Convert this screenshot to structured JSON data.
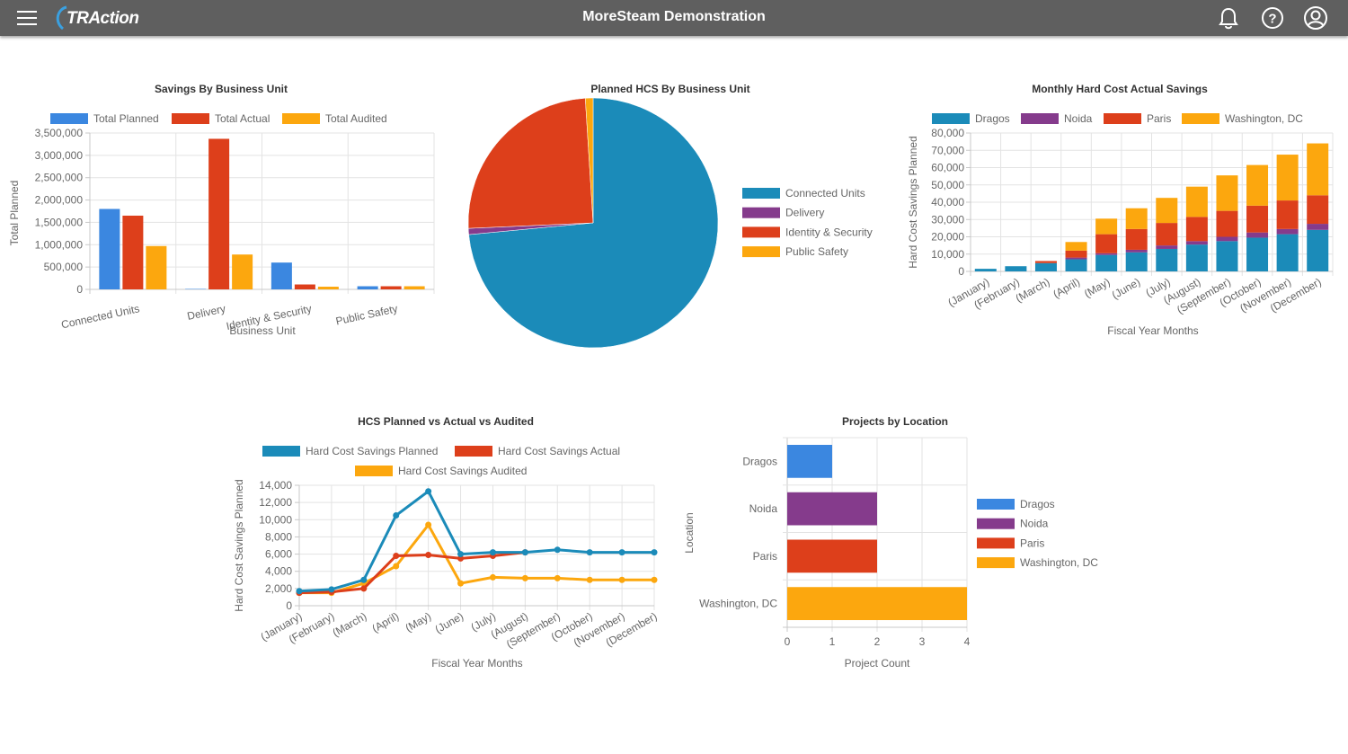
{
  "header": {
    "app_title": "MoreSteam Demonstration",
    "logo_text": "TRAction",
    "icons": [
      "menu-icon",
      "bell-icon",
      "help-icon",
      "user-icon"
    ]
  },
  "colors": {
    "blue": "#3b87e0",
    "red": "#dd3f1b",
    "orange": "#fca70e",
    "teal": "#1b8bb9",
    "purple": "#853b8c",
    "topbar": "#5f5f5f"
  },
  "chart_data": [
    {
      "id": "savings",
      "type": "bar",
      "title": "Savings By Business Unit",
      "xlabel": "Business Unit",
      "ylabel": "Total Planned",
      "categories": [
        "Connected Units",
        "Delivery",
        "Identity & Security",
        "Public Safety"
      ],
      "series": [
        {
          "name": "Total Planned",
          "color": "#3b87e0",
          "values": [
            1800000,
            10000,
            600000,
            70000
          ]
        },
        {
          "name": "Total Actual",
          "color": "#dd3f1b",
          "values": [
            1650000,
            3370000,
            110000,
            70000
          ]
        },
        {
          "name": "Total Audited",
          "color": "#fca70e",
          "values": [
            970000,
            780000,
            60000,
            70000
          ]
        }
      ],
      "ylim": [
        0,
        3500000
      ],
      "yticks": [
        "3,500,000",
        "3,000,000",
        "2,500,000",
        "2,000,000",
        "1,500,000",
        "1,000,000",
        "500,000",
        "0"
      ],
      "legend": "top"
    },
    {
      "id": "pie",
      "type": "pie",
      "title": "Planned HCS By Business Unit",
      "labels": [
        "Connected Units",
        "Delivery",
        "Identity & Security",
        "Public Safety"
      ],
      "values": [
        73.5,
        0.8,
        24.7,
        1.0
      ],
      "colors": [
        "#1b8bb9",
        "#853b8c",
        "#dd3f1b",
        "#fca70e"
      ],
      "legend": "right"
    },
    {
      "id": "monthly",
      "type": "bar",
      "stacked": true,
      "title": "Monthly Hard Cost Actual Savings",
      "xlabel": "Fiscal Year Months",
      "ylabel": "Hard Cost Savings Planned",
      "categories": [
        "(January)",
        "(February)",
        "(March)",
        "(April)",
        "(May)",
        "(June)",
        "(July)",
        "(August)",
        "(September)",
        "(October)",
        "(November)",
        "(December)"
      ],
      "series": [
        {
          "name": "Dragos",
          "color": "#1b8bb9",
          "values": [
            1500,
            3000,
            4800,
            7000,
            9500,
            11000,
            13000,
            15500,
            17500,
            19500,
            21500,
            24000
          ]
        },
        {
          "name": "Noida",
          "color": "#853b8c",
          "values": [
            0,
            0,
            0,
            1000,
            1000,
            1500,
            2000,
            2000,
            2500,
            3000,
            3000,
            3500
          ]
        },
        {
          "name": "Paris",
          "color": "#dd3f1b",
          "values": [
            0,
            0,
            1200,
            4000,
            11000,
            12000,
            13000,
            14000,
            15000,
            15500,
            16500,
            16500
          ]
        },
        {
          "name": "Washington, DC",
          "color": "#fca70e",
          "values": [
            0,
            0,
            0,
            5000,
            9000,
            12000,
            14500,
            17500,
            20500,
            23500,
            26500,
            30000
          ]
        }
      ],
      "ylim": [
        0,
        80000
      ],
      "yticks": [
        "80,000",
        "70,000",
        "60,000",
        "50,000",
        "40,000",
        "30,000",
        "20,000",
        "10,000",
        "0"
      ],
      "legend": "top"
    },
    {
      "id": "hcs",
      "type": "line",
      "title": "HCS Planned vs Actual vs Audited",
      "xlabel": "Fiscal Year Months",
      "ylabel": "Hard Cost Savings Planned",
      "categories": [
        "(January)",
        "(February)",
        "(March)",
        "(April)",
        "(May)",
        "(June)",
        "(July)",
        "(August)",
        "(September)",
        "(October)",
        "(November)",
        "(December)"
      ],
      "series": [
        {
          "name": "Hard Cost Savings Planned",
          "color": "#1b8bb9",
          "values": [
            1700,
            1900,
            3000,
            10500,
            13300,
            6000,
            6200,
            6200,
            6500,
            6200,
            6200,
            6200
          ]
        },
        {
          "name": "Hard Cost Savings Actual",
          "color": "#dd3f1b",
          "values": [
            1500,
            1600,
            2000,
            5800,
            5900,
            5500,
            5800,
            6200,
            null,
            null,
            null,
            null
          ]
        },
        {
          "name": "Hard Cost Savings Audited",
          "color": "#fca70e",
          "values": [
            1500,
            1500,
            2600,
            4600,
            9400,
            2600,
            3300,
            3200,
            3200,
            3000,
            3000,
            3000
          ]
        }
      ],
      "ylim": [
        0,
        14000
      ],
      "yticks": [
        "14,000",
        "12,000",
        "10,000",
        "8,000",
        "6,000",
        "4,000",
        "2,000",
        "0"
      ],
      "legend": "top"
    },
    {
      "id": "projects",
      "type": "bar",
      "orientation": "horizontal",
      "title": "Projects by Location",
      "xlabel": "Project Count",
      "ylabel": "Location",
      "categories": [
        "Dragos",
        "Noida",
        "Paris",
        "Washington, DC"
      ],
      "values": [
        1,
        2,
        2,
        4
      ],
      "colors": [
        "#3b87e0",
        "#853b8c",
        "#dd3f1b",
        "#fca70e"
      ],
      "xlim": [
        0,
        4
      ],
      "xticks": [
        "0",
        "1",
        "2",
        "3",
        "4"
      ],
      "legend": "right"
    }
  ]
}
